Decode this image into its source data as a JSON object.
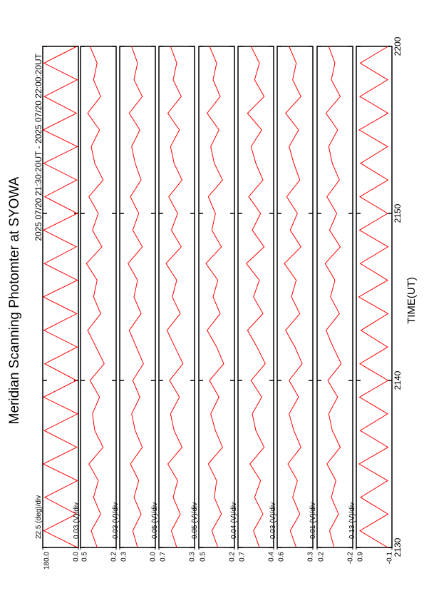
{
  "chart_data": {
    "type": "line",
    "title": "Meridian Scanning Photomter at SYOWA",
    "subtitle": "2025 07/20 21:30:20UT - 2025 07/20 22:00:20UT",
    "x_label": "TIME(UT)",
    "xlim": [
      0,
      30
    ],
    "xticks": [
      {
        "value": 0,
        "label": "2130"
      },
      {
        "value": 10,
        "label": "2140"
      },
      {
        "value": 20,
        "label": "2150"
      },
      {
        "value": 30,
        "label": "2200"
      }
    ],
    "x": [
      0,
      1,
      2,
      3,
      4,
      5,
      6,
      7,
      8,
      9,
      10,
      11,
      12,
      13,
      14,
      15,
      16,
      17,
      18,
      19,
      20,
      21,
      22,
      23,
      24,
      25,
      26,
      27,
      28,
      29,
      30
    ],
    "panels": [
      {
        "scale": "22.5 (deg)/div",
        "color": "#ff0000",
        "ylim": [
          0,
          180
        ],
        "yticks": [
          {
            "value": 0,
            "label": "0.0"
          },
          {
            "value": 180,
            "label": "180.0"
          }
        ],
        "values": [
          5,
          175,
          10,
          170,
          5,
          178,
          8,
          172,
          4,
          176,
          10,
          170,
          6,
          174,
          8,
          178,
          5,
          172,
          10,
          176,
          6,
          170,
          8,
          175,
          5,
          178,
          10,
          172,
          6,
          174,
          8
        ]
      },
      {
        "scale": "0.03 (V)/div",
        "color": "#ff0000",
        "ylim": [
          0.2,
          0.5
        ],
        "yticks": [
          0.2,
          0.5
        ],
        "values": [
          0.36,
          0.41,
          0.33,
          0.39,
          0.35,
          0.43,
          0.31,
          0.38,
          0.4,
          0.34,
          0.42,
          0.3,
          0.37,
          0.44,
          0.33,
          0.39,
          0.36,
          0.45,
          0.32,
          0.4,
          0.35,
          0.43,
          0.31,
          0.38,
          0.41,
          0.34,
          0.44,
          0.33,
          0.39,
          0.36,
          0.42
        ]
      },
      {
        "scale": "0.03 (V)/div",
        "color": "#ff0000",
        "ylim": [
          0,
          0.3
        ],
        "yticks": [
          {
            "value": 0,
            "label": "0.0"
          },
          0.3
        ],
        "values": [
          0.15,
          0.19,
          0.12,
          0.18,
          0.14,
          0.21,
          0.11,
          0.17,
          0.2,
          0.13,
          0.19,
          0.1,
          0.16,
          0.22,
          0.12,
          0.18,
          0.15,
          0.23,
          0.11,
          0.19,
          0.14,
          0.21,
          0.12,
          0.17,
          0.2,
          0.13,
          0.22,
          0.11,
          0.18,
          0.15,
          0.2
        ]
      },
      {
        "scale": "0.05 (V)/div",
        "color": "#ff0000",
        "ylim": [
          0.3,
          0.7
        ],
        "yticks": [
          0.3,
          0.7
        ],
        "values": [
          0.5,
          0.56,
          0.46,
          0.54,
          0.49,
          0.6,
          0.44,
          0.53,
          0.57,
          0.47,
          0.58,
          0.43,
          0.52,
          0.61,
          0.46,
          0.55,
          0.5,
          0.62,
          0.45,
          0.56,
          0.49,
          0.59,
          0.44,
          0.53,
          0.57,
          0.47,
          0.6,
          0.45,
          0.54,
          0.5,
          0.57
        ]
      },
      {
        "scale": "0.05 (V)/div",
        "color": "#ff0000",
        "ylim": [
          0.2,
          0.5
        ],
        "yticks": [
          0.2,
          0.5
        ],
        "values": [
          0.34,
          0.39,
          0.31,
          0.37,
          0.35,
          0.42,
          0.3,
          0.36,
          0.4,
          0.33,
          0.41,
          0.29,
          0.35,
          0.43,
          0.32,
          0.38,
          0.34,
          0.44,
          0.31,
          0.39,
          0.36,
          0.42,
          0.3,
          0.37,
          0.4,
          0.33,
          0.43,
          0.32,
          0.38,
          0.35,
          0.41
        ]
      },
      {
        "scale": "0.04 (V)/div",
        "color": "#ff0000",
        "ylim": [
          0.4,
          0.7
        ],
        "yticks": [
          0.4,
          0.7
        ],
        "values": [
          0.52,
          0.57,
          0.49,
          0.56,
          0.51,
          0.6,
          0.48,
          0.55,
          0.58,
          0.5,
          0.59,
          0.47,
          0.54,
          0.62,
          0.49,
          0.57,
          0.52,
          0.63,
          0.48,
          0.58,
          0.51,
          0.61,
          0.49,
          0.55,
          0.59,
          0.5,
          0.62,
          0.48,
          0.56,
          0.52,
          0.59
        ]
      },
      {
        "scale": "0.03 (V)/div",
        "color": "#ff0000",
        "ylim": [
          0.3,
          0.6
        ],
        "yticks": [
          0.3,
          0.6
        ],
        "values": [
          0.44,
          0.49,
          0.41,
          0.47,
          0.43,
          0.51,
          0.4,
          0.46,
          0.5,
          0.42,
          0.5,
          0.39,
          0.45,
          0.53,
          0.41,
          0.48,
          0.44,
          0.54,
          0.4,
          0.49,
          0.43,
          0.52,
          0.41,
          0.46,
          0.5,
          0.42,
          0.53,
          0.4,
          0.47,
          0.44,
          0.5
        ]
      },
      {
        "scale": "0.01 (V)/div",
        "color": "#ff0000",
        "ylim": [
          -0.2,
          0.2
        ],
        "yticks": [
          -0.2,
          0.2
        ],
        "values": [
          0.01,
          0.06,
          -0.04,
          0.04,
          -0.01,
          0.09,
          -0.06,
          0.03,
          0.07,
          -0.03,
          0.08,
          -0.07,
          0.02,
          0.1,
          -0.05,
          0.05,
          0.0,
          0.11,
          -0.06,
          0.06,
          -0.02,
          0.09,
          -0.05,
          0.03,
          0.07,
          -0.03,
          0.1,
          -0.06,
          0.04,
          0.0,
          0.07
        ]
      },
      {
        "scale": "0.13 (V)/div",
        "color": "#ff0000",
        "ylim": [
          -0.1,
          0.9
        ],
        "yticks": [
          -0.1,
          0.9
        ],
        "values": [
          0.02,
          0.8,
          0.01,
          0.78,
          0.02,
          0.82,
          0.01,
          0.79,
          0.02,
          0.81,
          0.01,
          0.8,
          0.02,
          0.77,
          0.01,
          0.83,
          0.02,
          0.79,
          0.01,
          0.81,
          0.02,
          0.8,
          0.01,
          0.78,
          0.02,
          0.82,
          0.01,
          0.8,
          0.02,
          0.79,
          0.01
        ]
      }
    ]
  }
}
